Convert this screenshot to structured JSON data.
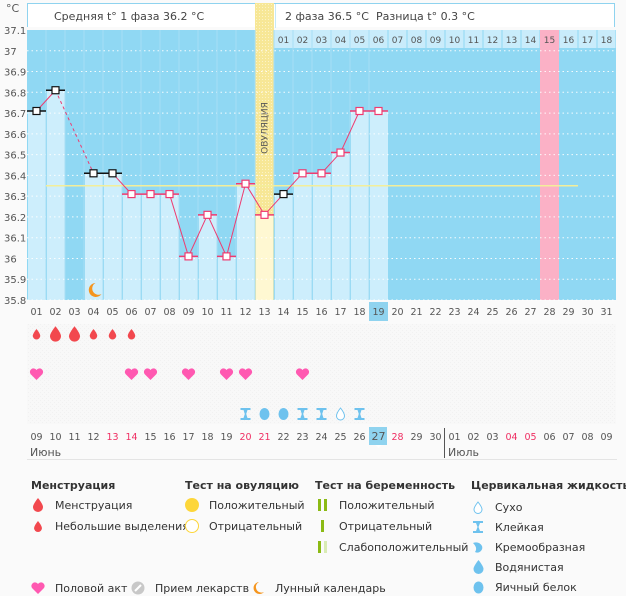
{
  "header": {
    "unit": "°C",
    "phase1": "Средняя t° 1 фаза 36.2 °C",
    "phase2": "2 фаза 36.5 °C",
    "difference": "Разница t° 0.3 °C"
  },
  "colors": {
    "chart_bg": "#90d8f3",
    "bar_fill": "#cdeefc",
    "ovulation_band": "#f7e796",
    "highlight_pink": "#fbb1c6",
    "line_color": "#ef3b70",
    "average_line": "#f3ee9a",
    "today_highlight": "#8fd3ef",
    "weekend_red": "#ef2f63",
    "menstruation_drop": "#f2484e",
    "heart": "#ff59b1",
    "fluid_blue": "#6ec2ee",
    "moon": "#f5951e",
    "preg_green": "#8bba14",
    "preg_light": "#d9ecb4",
    "ovu_positive": "#fdd63a"
  },
  "chart_data": {
    "type": "line",
    "title": "",
    "xlabel": "",
    "ylabel": "°C",
    "ylim": [
      35.8,
      37.1
    ],
    "yticks": [
      "37.1",
      "37",
      "36.9",
      "36.8",
      "36.7",
      "36.6",
      "36.5",
      "36.4",
      "36.3",
      "36.2",
      "36.1",
      "36",
      "35.9",
      "35.8"
    ],
    "cycle_days": [
      "01",
      "02",
      "03",
      "04",
      "05",
      "06",
      "07",
      "08",
      "09",
      "10",
      "11",
      "12",
      "13",
      "14",
      "15",
      "16",
      "17",
      "18",
      "19",
      "20",
      "21",
      "22",
      "23",
      "24",
      "25",
      "26",
      "27",
      "28",
      "29",
      "30",
      "31"
    ],
    "today_index": 18,
    "ovulation_label": "ОВУЛЯЦИЯ",
    "ovulation_day_index": 12,
    "phase2_days": [
      "01",
      "02",
      "03",
      "04",
      "05",
      "06",
      "07",
      "08",
      "09",
      "10",
      "11",
      "12",
      "13",
      "14",
      "15",
      "16",
      "17",
      "18"
    ],
    "phase2_highlight_index": 14,
    "highlight_cycle_day_index": 27,
    "cover_line": 36.35,
    "series": [
      {
        "name": "BBT",
        "values": [
          36.71,
          36.81,
          null,
          36.41,
          36.41,
          36.31,
          36.31,
          36.31,
          36.01,
          36.21,
          36.01,
          36.36,
          36.21,
          36.31,
          36.41,
          36.41,
          36.51,
          36.71,
          36.71
        ],
        "excluded_marker_indices": [
          0,
          1,
          3,
          4,
          13
        ]
      }
    ],
    "lunar_marker_day_index": 3
  },
  "calendar": {
    "dates": [
      "09",
      "10",
      "11",
      "12",
      "13",
      "14",
      "15",
      "16",
      "17",
      "18",
      "19",
      "20",
      "21",
      "22",
      "23",
      "24",
      "25",
      "26",
      "27",
      "28",
      "29",
      "30",
      "01",
      "02",
      "03",
      "04",
      "05",
      "06",
      "07",
      "08",
      "09"
    ],
    "weekend_indices": [
      4,
      5,
      11,
      12,
      19,
      25,
      26
    ],
    "today_index": 18,
    "month_start_index": 22,
    "months": [
      "Июнь",
      "Июль"
    ]
  },
  "rows": {
    "menstruation": [
      "small",
      "large",
      "large",
      "small",
      "small",
      "small"
    ],
    "intercourse_indices": [
      0,
      5,
      6,
      8,
      10,
      11,
      14
    ],
    "cervical_fluid": [
      {
        "index": 11,
        "type": "sticky"
      },
      {
        "index": 12,
        "type": "egg-white"
      },
      {
        "index": 13,
        "type": "egg-white"
      },
      {
        "index": 14,
        "type": "sticky"
      },
      {
        "index": 15,
        "type": "sticky"
      },
      {
        "index": 16,
        "type": "dry"
      },
      {
        "index": 17,
        "type": "sticky"
      }
    ]
  },
  "legend": {
    "menstruation": {
      "title": "Менструация",
      "items": [
        "Менструация",
        "Небольшие выделения"
      ]
    },
    "ovulation_test": {
      "title": "Тест на овуляцию",
      "items": [
        "Положительный",
        "Отрицательный"
      ]
    },
    "pregnancy_test": {
      "title": "Тест на беременность",
      "items": [
        "Положительный",
        "Отрицательный",
        "Слабоположительный"
      ]
    },
    "cervical_fluid": {
      "title": "Цервикальная жидкость",
      "items": [
        "Сухо",
        "Клейкая",
        "Кремообразная",
        "Водянистая",
        "Яичный белок"
      ]
    },
    "other": [
      "Половой акт",
      "Прием лекарств",
      "Лунный календарь"
    ]
  }
}
